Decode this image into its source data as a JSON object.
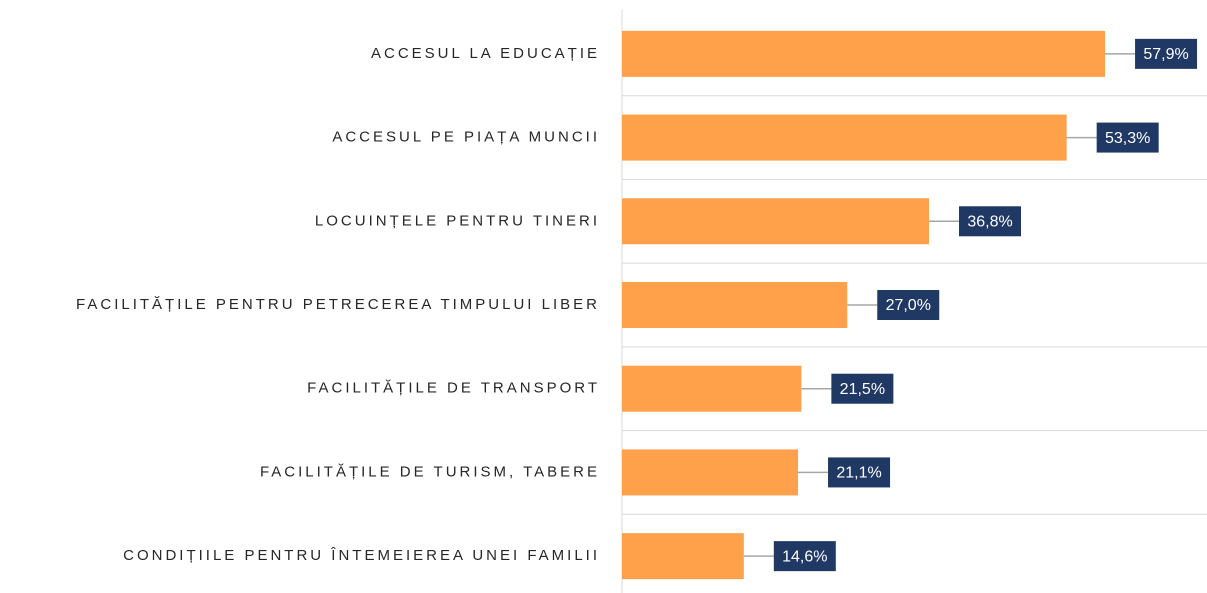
{
  "chart_data": {
    "type": "bar",
    "orientation": "horizontal",
    "categories": [
      "ACCESUL LA EDUCAȚIE",
      "ACCESUL PE PIAȚA MUNCII",
      "LOCUINȚELE PENTRU TINERI",
      "FACILITĂȚILE PENTRU PETRECEREA TIMPULUI LIBER",
      "FACILITĂȚILE DE TRANSPORT",
      "FACILITĂȚILE DE TURISM, TABERE",
      "CONDIȚIILE PENTRU ÎNTEMEIEREA UNEI FAMILII"
    ],
    "values": [
      57.9,
      53.3,
      36.8,
      27.0,
      21.5,
      21.1,
      14.6
    ],
    "value_labels": [
      "57,9%",
      "53,3%",
      "36,8%",
      "27,0%",
      "21,5%",
      "21,1%",
      "14,6%"
    ],
    "color": "#ffa04a",
    "label_color": "#1f3864",
    "xlim": [
      0,
      70
    ]
  }
}
